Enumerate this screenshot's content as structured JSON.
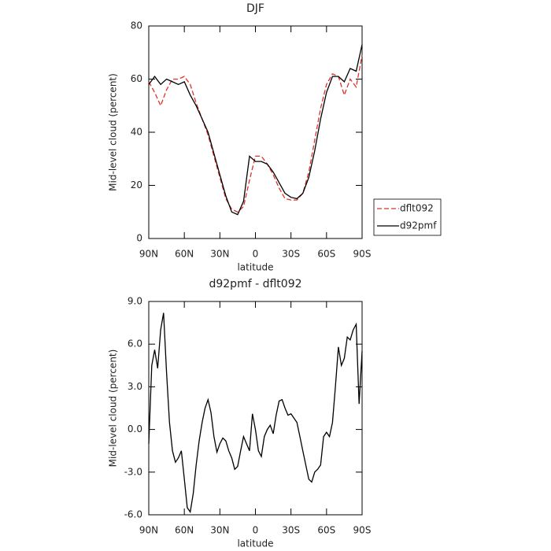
{
  "chart_data": [
    {
      "type": "line",
      "title": "DJF",
      "xlabel": "latitude",
      "ylabel": "Mid-level cloud (percent)",
      "x": [
        90,
        85,
        80,
        75,
        70,
        65,
        60,
        55,
        50,
        45,
        40,
        35,
        30,
        25,
        20,
        15,
        10,
        5,
        0,
        -5,
        -10,
        -15,
        -20,
        -25,
        -30,
        -35,
        -40,
        -45,
        -50,
        -55,
        -60,
        -65,
        -70,
        -75,
        -80,
        -85,
        -90
      ],
      "series": [
        {
          "name": "dflt092",
          "color": "#e0302a",
          "dashed": true,
          "values": [
            59,
            55,
            50,
            56,
            60,
            60,
            61,
            58,
            51,
            45,
            39,
            31,
            23,
            15,
            11,
            10,
            12,
            22,
            31,
            31,
            28,
            24,
            19,
            15,
            14.5,
            14.5,
            17,
            25,
            37,
            49,
            58,
            62,
            61,
            54,
            60,
            57,
            69
          ]
        },
        {
          "name": "d92pmf",
          "color": "#000000",
          "dashed": false,
          "values": [
            58,
            61,
            58,
            60,
            59,
            58,
            59,
            54,
            50,
            45,
            40,
            32,
            24,
            16,
            10,
            9,
            14,
            31,
            29,
            29,
            28,
            25,
            21,
            17,
            15.5,
            15,
            17,
            23,
            33,
            45,
            55,
            61,
            61,
            59,
            64,
            63,
            73
          ]
        }
      ],
      "xlim": [
        90,
        -90
      ],
      "xticks": [
        {
          "value": 90,
          "label": "90N"
        },
        {
          "value": 60,
          "label": "60N"
        },
        {
          "value": 30,
          "label": "30N"
        },
        0,
        {
          "value": -30,
          "label": "30S"
        },
        {
          "value": -60,
          "label": "60S"
        },
        {
          "value": -90,
          "label": "90S"
        }
      ],
      "ylim": [
        0,
        80
      ],
      "yticks": [
        0,
        20,
        40,
        60,
        80
      ],
      "legend": "right"
    },
    {
      "type": "line",
      "title": "d92pmf - dflt092",
      "xlabel": "latitude",
      "ylabel": "Mid-level cloud (percent)",
      "x": [
        90,
        87.5,
        85,
        82.5,
        80,
        77.5,
        75,
        72.5,
        70,
        67.5,
        65,
        62.5,
        60,
        57.5,
        55,
        52.5,
        50,
        47.5,
        45,
        42.5,
        40,
        37.5,
        35,
        32.5,
        30,
        27.5,
        25,
        22.5,
        20,
        17.5,
        15,
        12.5,
        10,
        7.5,
        5,
        2.5,
        0,
        -2.5,
        -5,
        -7.5,
        -10,
        -12.5,
        -15,
        -17.5,
        -20,
        -22.5,
        -25,
        -27.5,
        -30,
        -32.5,
        -35,
        -37.5,
        -40,
        -42.5,
        -45,
        -47.5,
        -50,
        -52.5,
        -55,
        -57.5,
        -60,
        -62.5,
        -65,
        -67.5,
        -70,
        -72.5,
        -75,
        -77.5,
        -80,
        -82.5,
        -85,
        -87.5,
        -90
      ],
      "series": [
        {
          "color": "#000000",
          "dashed": false,
          "values": [
            -1,
            4.5,
            5.6,
            4.3,
            7,
            8.2,
            4,
            0.5,
            -1.5,
            -2.3,
            -2,
            -1.5,
            -3.5,
            -5.5,
            -5.8,
            -4.5,
            -2.5,
            -0.8,
            0.5,
            1.5,
            2.1,
            1.2,
            -0.5,
            -1.6,
            -1,
            -0.6,
            -0.8,
            -1.5,
            -2,
            -2.8,
            -2.6,
            -1.5,
            -0.5,
            -1,
            -1.5,
            1.1,
            0,
            -1.5,
            -1.9,
            -0.5,
            0,
            0.3,
            -0.3,
            1,
            2,
            2.1,
            1.5,
            1,
            1.1,
            0.8,
            0.5,
            -0.5,
            -1.5,
            -2.5,
            -3.5,
            -3.7,
            -3,
            -2.8,
            -2.5,
            -0.5,
            -0.2,
            -0.5,
            0.5,
            3,
            5.8,
            4.5,
            5,
            6.5,
            6.3,
            7,
            7.4,
            1.8,
            5.5
          ]
        }
      ],
      "xlim": [
        90,
        -90
      ],
      "xticks": [
        {
          "value": 90,
          "label": "90N"
        },
        {
          "value": 60,
          "label": "60N"
        },
        {
          "value": 30,
          "label": "30N"
        },
        0,
        {
          "value": -30,
          "label": "30S"
        },
        {
          "value": -60,
          "label": "60S"
        },
        {
          "value": -90,
          "label": "90S"
        }
      ],
      "ylim": [
        -6,
        9
      ],
      "yticks": [
        {
          "value": -6,
          "label": "-6.0"
        },
        {
          "value": -3,
          "label": "-3.0"
        },
        {
          "value": 0,
          "label": "0.0"
        },
        {
          "value": 3,
          "label": "3.0"
        },
        {
          "value": 6,
          "label": "6.0"
        },
        {
          "value": 9,
          "label": "9.0"
        }
      ]
    }
  ]
}
